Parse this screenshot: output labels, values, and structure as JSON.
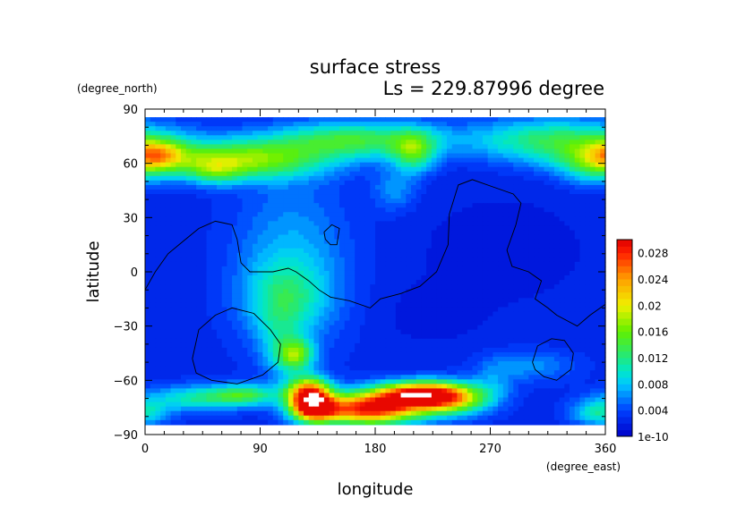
{
  "chart_data": {
    "type": "heatmap",
    "title": "surface stress",
    "subtitle": "Ls = 229.87996 degree",
    "xlabel": "longitude",
    "ylabel": "latitude",
    "x_units": "(degree_east)",
    "y_units": "(degree_north)",
    "xlim": [
      0,
      360
    ],
    "ylim": [
      -90,
      90
    ],
    "x_ticks": [
      "0",
      "90",
      "180",
      "270",
      "360"
    ],
    "y_ticks": [
      "90",
      "60",
      "30",
      "0",
      "−30",
      "−60",
      "−90"
    ],
    "colorbar": {
      "labels": [
        "0.028",
        "0.024",
        "0.02",
        "0.016",
        "0.012",
        "0.008",
        "0.004",
        "1e-10"
      ],
      "min": 0,
      "max": 0.03
    },
    "field": {
      "background": 0.0025,
      "features": [
        {
          "lon": 45,
          "lat": 62,
          "slon": 55,
          "slat": 7,
          "value": 0.009
        },
        {
          "lon": 90,
          "lat": 62,
          "slon": 40,
          "slat": 8,
          "value": 0.007
        },
        {
          "lon": 10,
          "lat": 65,
          "slon": 14,
          "slat": 6,
          "value": 0.01
        },
        {
          "lon": 55,
          "lat": 55,
          "slon": 15,
          "slat": 5,
          "value": 0.006
        },
        {
          "lon": 165,
          "lat": 73,
          "slon": 45,
          "slat": 7,
          "value": 0.011
        },
        {
          "lon": 210,
          "lat": 66,
          "slon": 12,
          "slat": 8,
          "value": 0.01
        },
        {
          "lon": 320,
          "lat": 73,
          "slon": 45,
          "slat": 8,
          "value": 0.01
        },
        {
          "lon": 350,
          "lat": 60,
          "slon": 18,
          "slat": 8,
          "value": 0.007
        },
        {
          "lon": 195,
          "lat": 45,
          "slon": 12,
          "slat": 8,
          "value": 0.004
        },
        {
          "lon": 115,
          "lat": 5,
          "slon": 32,
          "slat": 32,
          "value": 0.005
        },
        {
          "lon": 110,
          "lat": -15,
          "slon": 22,
          "slat": 14,
          "value": 0.006
        },
        {
          "lon": 280,
          "lat": 12,
          "slon": 55,
          "slat": 25,
          "value": -0.0009
        },
        {
          "lon": 220,
          "lat": -25,
          "slon": 30,
          "slat": 12,
          "value": -0.0008
        },
        {
          "lon": 118,
          "lat": -46,
          "slon": 10,
          "slat": 6,
          "value": 0.012
        },
        {
          "lon": 105,
          "lat": -40,
          "slon": 12,
          "slat": 14,
          "value": 0.004
        },
        {
          "lon": 40,
          "lat": -70,
          "slon": 28,
          "slat": 5,
          "value": 0.008
        },
        {
          "lon": 78,
          "lat": -68,
          "slon": 18,
          "slat": 4,
          "value": 0.009
        },
        {
          "lon": 128,
          "lat": -67,
          "slon": 12,
          "slat": 6,
          "value": 0.024
        },
        {
          "lon": 132,
          "lat": -76,
          "slon": 12,
          "slat": 5,
          "value": 0.022
        },
        {
          "lon": 175,
          "lat": -76,
          "slon": 28,
          "slat": 6,
          "value": 0.026
        },
        {
          "lon": 215,
          "lat": -68,
          "slon": 25,
          "slat": 5,
          "value": 0.026
        },
        {
          "lon": 240,
          "lat": -71,
          "slon": 20,
          "slat": 6,
          "value": 0.012
        },
        {
          "lon": 300,
          "lat": -52,
          "slon": 25,
          "slat": 6,
          "value": 0.004
        },
        {
          "lon": 272,
          "lat": -62,
          "slon": 12,
          "slat": 8,
          "value": 0.003
        },
        {
          "lon": 355,
          "lat": -78,
          "slon": 15,
          "slat": 5,
          "value": 0.008
        }
      ],
      "saturated": [
        {
          "lon": 132,
          "lat": -70.5,
          "rlon": 7,
          "rlat": 3.2
        },
        {
          "lon": 212,
          "lat": -68.5,
          "rlon": 13,
          "rlat": 1.6
        }
      ]
    },
    "contours": [
      [
        [
          0,
          -10
        ],
        [
          8,
          0
        ],
        [
          18,
          10
        ],
        [
          30,
          17
        ],
        [
          42,
          24
        ],
        [
          55,
          28
        ],
        [
          68,
          26
        ],
        [
          72,
          18
        ],
        [
          75,
          5
        ],
        [
          82,
          0
        ],
        [
          100,
          0
        ],
        [
          112,
          2
        ],
        [
          118,
          0
        ],
        [
          128,
          -5
        ],
        [
          136,
          -10
        ],
        [
          145,
          -14
        ],
        [
          160,
          -16
        ],
        [
          176,
          -20
        ],
        [
          184,
          -15
        ],
        [
          200,
          -12
        ],
        [
          215,
          -8
        ],
        [
          228,
          0
        ],
        [
          237,
          15
        ],
        [
          238,
          32
        ],
        [
          245,
          48
        ],
        [
          256,
          51
        ],
        [
          272,
          47
        ],
        [
          288,
          43
        ],
        [
          294,
          38
        ],
        [
          290,
          26
        ],
        [
          283,
          12
        ],
        [
          287,
          3
        ],
        [
          300,
          0
        ],
        [
          310,
          -5
        ],
        [
          305,
          -15
        ],
        [
          315,
          -20
        ],
        [
          322,
          -24
        ],
        [
          338,
          -30
        ],
        [
          348,
          -24
        ],
        [
          360,
          -18
        ]
      ],
      [
        [
          140,
          22
        ],
        [
          146,
          26
        ],
        [
          152,
          24
        ],
        [
          150,
          15
        ],
        [
          145,
          15
        ],
        [
          141,
          18
        ],
        [
          140,
          22
        ]
      ],
      [
        [
          37,
          -48
        ],
        [
          42,
          -32
        ],
        [
          55,
          -24
        ],
        [
          68,
          -20
        ],
        [
          85,
          -23
        ],
        [
          98,
          -32
        ],
        [
          106,
          -40
        ],
        [
          104,
          -50
        ],
        [
          92,
          -57
        ],
        [
          72,
          -62
        ],
        [
          52,
          -60
        ],
        [
          40,
          -56
        ],
        [
          37,
          -48
        ]
      ],
      [
        [
          303,
          -50
        ],
        [
          307,
          -41
        ],
        [
          318,
          -37
        ],
        [
          328,
          -38
        ],
        [
          335,
          -45
        ],
        [
          333,
          -54
        ],
        [
          322,
          -60
        ],
        [
          312,
          -58
        ],
        [
          305,
          -54
        ],
        [
          303,
          -50
        ]
      ]
    ]
  }
}
